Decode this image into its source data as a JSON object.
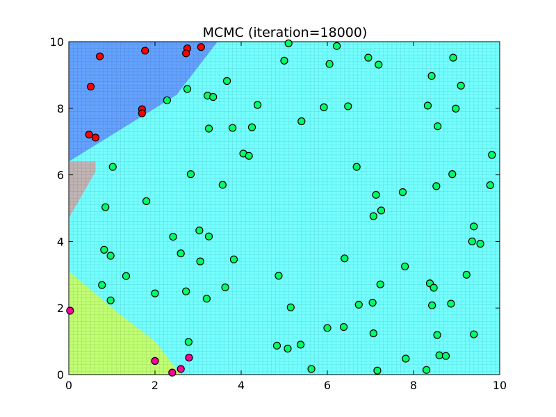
{
  "chart_data": {
    "type": "scatter",
    "title": "MCMC (iteration=18000)",
    "xlabel": "",
    "ylabel": "",
    "xlim": [
      0,
      10
    ],
    "ylim": [
      0,
      10
    ],
    "xticks": [
      "0",
      "2",
      "4",
      "6",
      "8",
      "10"
    ],
    "yticks": [
      "0",
      "2",
      "4",
      "6",
      "8",
      "10"
    ],
    "grid": false,
    "legend": "none",
    "regions": [
      {
        "name": "",
        "color": "#00ffff",
        "polygon": [
          [
            0,
            0
          ],
          [
            10,
            0
          ],
          [
            10,
            10
          ],
          [
            0,
            10
          ]
        ]
      },
      {
        "name": "",
        "color": "#5555ff",
        "polygon": [
          [
            0,
            10
          ],
          [
            3.45,
            10
          ],
          [
            2.5,
            8.4
          ],
          [
            0,
            6.4
          ]
        ]
      },
      {
        "name": "",
        "color": "#ff7777",
        "polygon": [
          [
            0,
            6.4
          ],
          [
            0.62,
            6.4
          ],
          [
            0.62,
            6.1
          ],
          [
            0,
            4.7
          ]
        ]
      },
      {
        "name": "",
        "color": "#ffff00",
        "polygon": [
          [
            0,
            3.1
          ],
          [
            1.2,
            1.8
          ],
          [
            2.0,
            1.0
          ],
          [
            2.6,
            0
          ],
          [
            0,
            0
          ]
        ]
      }
    ],
    "series": [
      {
        "color": "#ff0000",
        "points": [
          [
            0.72,
            9.56
          ],
          [
            1.77,
            9.73
          ],
          [
            2.75,
            9.8
          ],
          [
            3.07,
            9.84
          ],
          [
            2.72,
            9.65
          ],
          [
            0.51,
            8.65
          ],
          [
            1.7,
            7.97
          ],
          [
            1.7,
            7.85
          ],
          [
            0.47,
            7.21
          ],
          [
            0.62,
            7.12
          ]
        ]
      },
      {
        "color": "#00ff66",
        "points": [
          [
            5.1,
            9.95
          ],
          [
            6.22,
            9.87
          ],
          [
            6.95,
            9.52
          ],
          [
            7.19,
            9.31
          ],
          [
            8.92,
            9.52
          ],
          [
            5.0,
            9.43
          ],
          [
            6.05,
            9.33
          ],
          [
            8.42,
            8.97
          ],
          [
            9.1,
            8.68
          ],
          [
            3.67,
            8.82
          ],
          [
            2.75,
            8.58
          ],
          [
            2.28,
            8.24
          ],
          [
            3.22,
            8.38
          ],
          [
            3.35,
            8.34
          ],
          [
            4.38,
            8.1
          ],
          [
            5.92,
            8.03
          ],
          [
            6.48,
            8.06
          ],
          [
            8.33,
            8.08
          ],
          [
            8.98,
            7.99
          ],
          [
            5.4,
            7.61
          ],
          [
            3.25,
            7.39
          ],
          [
            3.8,
            7.41
          ],
          [
            4.25,
            7.43
          ],
          [
            8.56,
            7.46
          ],
          [
            4.05,
            6.64
          ],
          [
            4.18,
            6.57
          ],
          [
            9.82,
            6.6
          ],
          [
            1.02,
            6.24
          ],
          [
            2.83,
            6.02
          ],
          [
            6.68,
            6.24
          ],
          [
            8.9,
            6.02
          ],
          [
            3.57,
            5.7
          ],
          [
            7.13,
            5.4
          ],
          [
            8.53,
            5.66
          ],
          [
            9.78,
            5.69
          ],
          [
            7.75,
            5.48
          ],
          [
            1.8,
            5.21
          ],
          [
            0.85,
            5.03
          ],
          [
            7.25,
            4.93
          ],
          [
            7.07,
            4.76
          ],
          [
            9.4,
            4.45
          ],
          [
            3.03,
            4.33
          ],
          [
            2.42,
            4.14
          ],
          [
            3.25,
            4.15
          ],
          [
            9.36,
            4.0
          ],
          [
            9.55,
            3.93
          ],
          [
            0.82,
            3.75
          ],
          [
            0.97,
            3.57
          ],
          [
            2.6,
            3.64
          ],
          [
            3.83,
            3.46
          ],
          [
            3.05,
            3.4
          ],
          [
            6.4,
            3.49
          ],
          [
            7.8,
            3.25
          ],
          [
            1.33,
            2.96
          ],
          [
            4.87,
            2.97
          ],
          [
            9.23,
            3.0
          ],
          [
            0.77,
            2.69
          ],
          [
            3.63,
            2.62
          ],
          [
            7.23,
            2.71
          ],
          [
            8.38,
            2.74
          ],
          [
            8.47,
            2.61
          ],
          [
            2.0,
            2.44
          ],
          [
            2.72,
            2.5
          ],
          [
            0.97,
            2.23
          ],
          [
            3.2,
            2.28
          ],
          [
            5.15,
            2.02
          ],
          [
            6.73,
            2.1
          ],
          [
            7.05,
            2.16
          ],
          [
            8.43,
            2.08
          ],
          [
            8.87,
            2.13
          ],
          [
            6.0,
            1.4
          ],
          [
            6.38,
            1.43
          ],
          [
            7.07,
            1.24
          ],
          [
            8.55,
            1.19
          ],
          [
            9.4,
            1.21
          ],
          [
            2.78,
            0.98
          ],
          [
            4.83,
            0.87
          ],
          [
            5.08,
            0.78
          ],
          [
            5.38,
            0.9
          ],
          [
            7.82,
            0.48
          ],
          [
            8.6,
            0.58
          ],
          [
            8.75,
            0.56
          ],
          [
            5.63,
            0.17
          ],
          [
            7.16,
            0.12
          ],
          [
            8.3,
            0.14
          ]
        ]
      },
      {
        "color": "#ff0099",
        "points": [
          [
            0.03,
            1.92
          ],
          [
            2.0,
            0.41
          ],
          [
            2.79,
            0.51
          ],
          [
            2.6,
            0.17
          ],
          [
            2.4,
            0.06
          ]
        ]
      }
    ]
  }
}
